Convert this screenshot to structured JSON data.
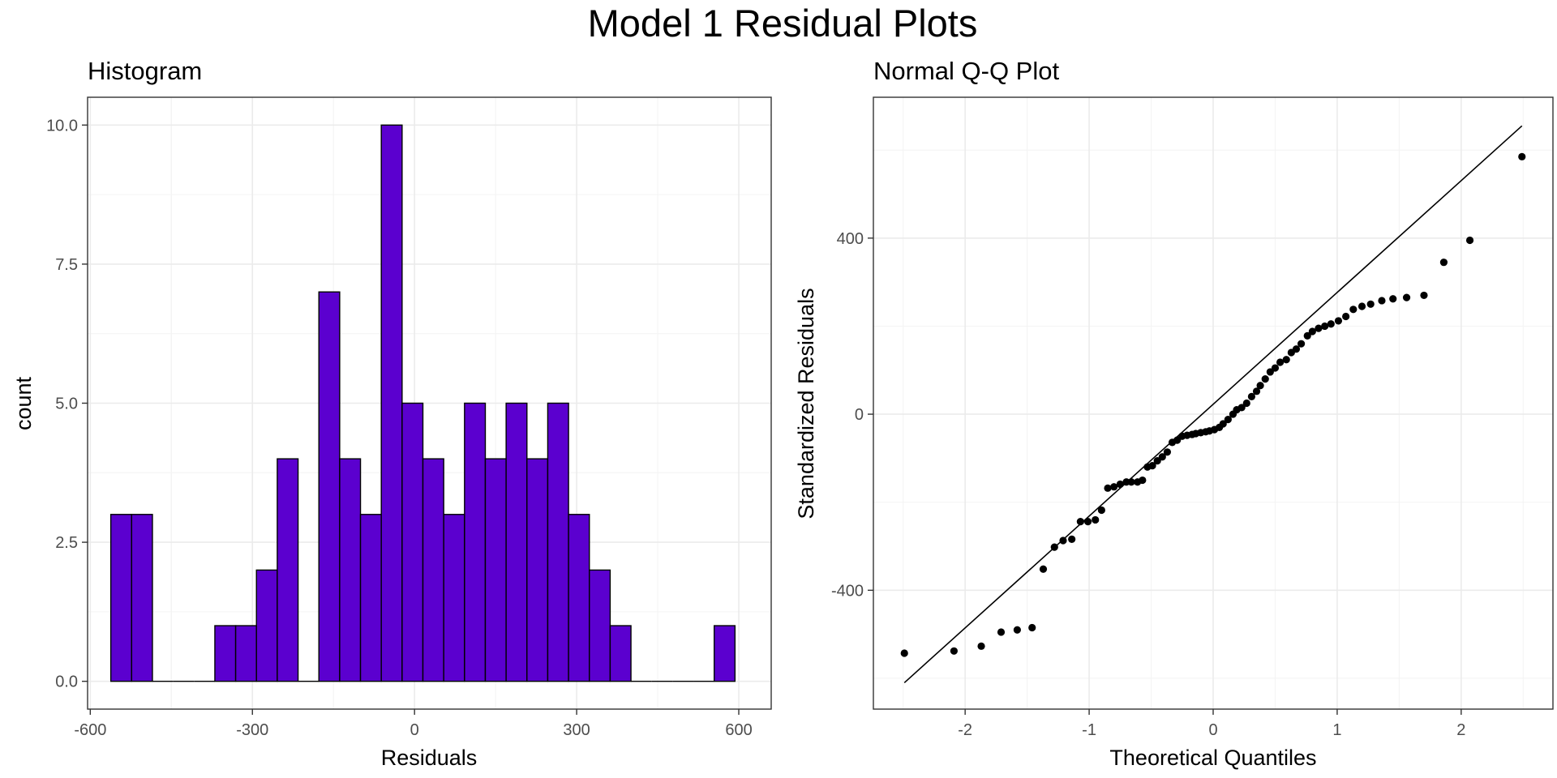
{
  "title": "Model 1 Residual Plots",
  "chart_data": [
    {
      "type": "bar",
      "title": "Histogram",
      "xlabel": "Residuals",
      "ylabel": "count",
      "xlim": [
        -605,
        660
      ],
      "ylim": [
        -0.5,
        10.5
      ],
      "x_ticks": [
        -600,
        -300,
        0,
        300,
        600
      ],
      "x_tick_labels": [
        "-600",
        "-300",
        "0",
        "300",
        "600"
      ],
      "y_ticks": [
        0,
        2.5,
        5,
        7.5,
        10
      ],
      "y_tick_labels": [
        "0.0",
        "2.5",
        "5.0",
        "7.5",
        "10.0"
      ],
      "bin_width": 38.5,
      "bin_start": -562,
      "values": [
        3,
        3,
        0,
        0,
        0,
        1,
        1,
        2,
        4,
        0,
        7,
        4,
        3,
        10,
        5,
        4,
        3,
        5,
        4,
        5,
        4,
        5,
        3,
        2,
        1,
        0,
        0,
        0,
        0,
        1
      ],
      "fill_color": "#5b00cf",
      "grid": true
    },
    {
      "type": "scatter",
      "title": "Normal Q-Q Plot",
      "xlabel": "Theoretical Quantiles",
      "ylabel": "Standardized Residuals",
      "xlim": [
        -2.74,
        2.74
      ],
      "ylim": [
        -670,
        720
      ],
      "x_ticks": [
        -2,
        -1,
        0,
        1,
        2
      ],
      "x_tick_labels": [
        "-2",
        "-1",
        "0",
        "1",
        "2"
      ],
      "y_ticks": [
        -400,
        0,
        400
      ],
      "y_tick_labels": [
        "-400",
        "0",
        "400"
      ],
      "reference_line": {
        "x": [
          -2.49,
          2.49
        ],
        "y": [
          -610,
          655
        ]
      },
      "points": [
        [
          -2.49,
          -543
        ],
        [
          -2.09,
          -538
        ],
        [
          -1.87,
          -527
        ],
        [
          -1.71,
          -495
        ],
        [
          -1.58,
          -490
        ],
        [
          -1.46,
          -485
        ],
        [
          -1.37,
          -352
        ],
        [
          -1.28,
          -302
        ],
        [
          -1.21,
          -287
        ],
        [
          -1.14,
          -284
        ],
        [
          -1.07,
          -244
        ],
        [
          -1.01,
          -244
        ],
        [
          -0.95,
          -240
        ],
        [
          -0.9,
          -218
        ],
        [
          -0.85,
          -168
        ],
        [
          -0.8,
          -165
        ],
        [
          -0.75,
          -159
        ],
        [
          -0.7,
          -154
        ],
        [
          -0.66,
          -154
        ],
        [
          -0.61,
          -154
        ],
        [
          -0.57,
          -150
        ],
        [
          -0.53,
          -120
        ],
        [
          -0.49,
          -117
        ],
        [
          -0.45,
          -106
        ],
        [
          -0.41,
          -97
        ],
        [
          -0.37,
          -86
        ],
        [
          -0.33,
          -64
        ],
        [
          -0.29,
          -59
        ],
        [
          -0.25,
          -50
        ],
        [
          -0.21,
          -48
        ],
        [
          -0.17,
          -46
        ],
        [
          -0.14,
          -44
        ],
        [
          -0.1,
          -42
        ],
        [
          -0.06,
          -40
        ],
        [
          -0.03,
          -38
        ],
        [
          0.01,
          -35
        ],
        [
          0.05,
          -30
        ],
        [
          0.08,
          -22
        ],
        [
          0.12,
          -12
        ],
        [
          0.16,
          0
        ],
        [
          0.19,
          10
        ],
        [
          0.23,
          15
        ],
        [
          0.27,
          25
        ],
        [
          0.31,
          40
        ],
        [
          0.35,
          52
        ],
        [
          0.38,
          65
        ],
        [
          0.42,
          80
        ],
        [
          0.46,
          96
        ],
        [
          0.5,
          105
        ],
        [
          0.54,
          118
        ],
        [
          0.59,
          124
        ],
        [
          0.63,
          140
        ],
        [
          0.67,
          148
        ],
        [
          0.71,
          160
        ],
        [
          0.76,
          178
        ],
        [
          0.8,
          188
        ],
        [
          0.85,
          195
        ],
        [
          0.9,
          200
        ],
        [
          0.95,
          205
        ],
        [
          1.01,
          212
        ],
        [
          1.07,
          222
        ],
        [
          1.13,
          238
        ],
        [
          1.2,
          245
        ],
        [
          1.27,
          250
        ],
        [
          1.36,
          258
        ],
        [
          1.45,
          262
        ],
        [
          1.56,
          265
        ],
        [
          1.7,
          270
        ],
        [
          1.86,
          345
        ],
        [
          2.07,
          395
        ],
        [
          2.49,
          585
        ]
      ],
      "grid": true
    }
  ]
}
